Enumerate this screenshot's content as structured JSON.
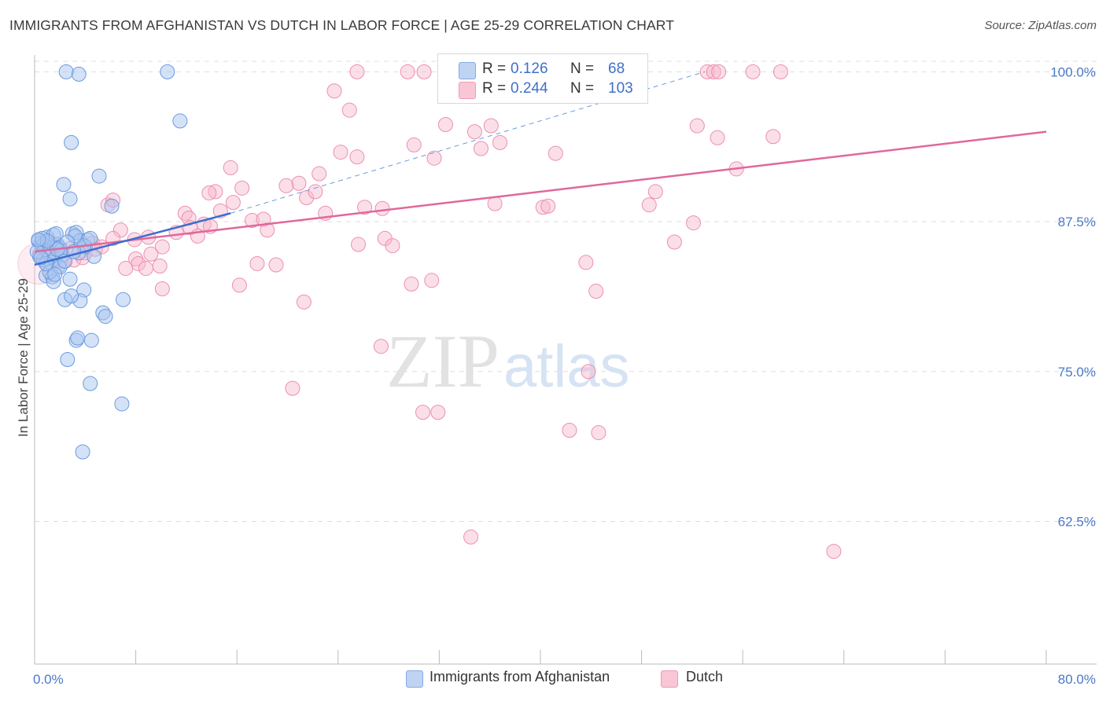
{
  "title": "IMMIGRANTS FROM AFGHANISTAN VS DUTCH IN LABOR FORCE | AGE 25-29 CORRELATION CHART",
  "source": "Source: ZipAtlas.com",
  "watermark": {
    "zip": "ZIP",
    "atlas": "atlas"
  },
  "legend": {
    "r_label": "R =",
    "n_label": "N =",
    "series": [
      {
        "name": "Immigrants from Afghanistan",
        "r": "0.126",
        "n": "68"
      },
      {
        "name": "Dutch",
        "r": "0.244",
        "n": "103"
      }
    ]
  },
  "colors": {
    "blue_fill": "#a9c6f0",
    "blue_stroke": "#6b9be0",
    "blue_line": "#3b6fcf",
    "pink_fill": "#f7b9cc",
    "pink_stroke": "#ec8fae",
    "pink_line": "#e0689a",
    "grid": "#dddddd",
    "tick_text": "#4a78c8"
  },
  "chart_data": {
    "type": "scatter",
    "title": "IMMIGRANTS FROM AFGHANISTAN VS DUTCH IN LABOR FORCE | AGE 25-29 CORRELATION CHART",
    "xlabel": "",
    "ylabel": "In Labor Force | Age 25-29",
    "xlim": [
      0,
      80
    ],
    "ylim": [
      50.6,
      101.4
    ],
    "x_tick_labels": [
      "0.0%",
      "80.0%"
    ],
    "y_ticks": [
      62.5,
      75.0,
      87.5,
      100.0
    ],
    "y_tick_labels": [
      "62.5%",
      "75.0%",
      "87.5%",
      "100.0%"
    ],
    "legend_position": "top-center",
    "series": [
      {
        "name": "Immigrants from Afghanistan",
        "r": 0.126,
        "n": 68,
        "trend": {
          "x0": 0.0,
          "y0": 83.9,
          "x1": 15.5,
          "y1": 88.2
        },
        "trend_dashed": {
          "x0": 15.5,
          "y0": 88.2,
          "x1": 53.0,
          "y1": 100.0
        },
        "points": [
          [
            2.5,
            100.0
          ],
          [
            3.5,
            99.8
          ],
          [
            10.5,
            100.0
          ],
          [
            11.5,
            95.9
          ],
          [
            2.9,
            94.1
          ],
          [
            5.1,
            91.3
          ],
          [
            2.3,
            90.6
          ],
          [
            2.8,
            89.4
          ],
          [
            6.1,
            88.8
          ],
          [
            0.3,
            85.9
          ],
          [
            0.5,
            85.7
          ],
          [
            0.6,
            85.5
          ],
          [
            0.8,
            85.2
          ],
          [
            1.0,
            86.2
          ],
          [
            1.2,
            85.8
          ],
          [
            1.5,
            86.4
          ],
          [
            1.8,
            85.6
          ],
          [
            2.0,
            85.3
          ],
          [
            0.4,
            84.6
          ],
          [
            0.7,
            84.3
          ],
          [
            1.1,
            84.9
          ],
          [
            1.3,
            84.1
          ],
          [
            1.6,
            84.4
          ],
          [
            1.9,
            83.8
          ],
          [
            2.2,
            84.7
          ],
          [
            3.0,
            86.5
          ],
          [
            3.3,
            86.6
          ],
          [
            3.6,
            85.9
          ],
          [
            4.2,
            86.0
          ],
          [
            4.0,
            85.4
          ],
          [
            4.7,
            84.6
          ],
          [
            0.9,
            83.0
          ],
          [
            1.4,
            82.9
          ],
          [
            1.5,
            82.5
          ],
          [
            2.8,
            82.7
          ],
          [
            3.9,
            81.8
          ],
          [
            2.4,
            81.0
          ],
          [
            3.6,
            80.9
          ],
          [
            2.9,
            81.3
          ],
          [
            5.4,
            79.9
          ],
          [
            5.6,
            79.6
          ],
          [
            3.3,
            77.6
          ],
          [
            4.5,
            77.6
          ],
          [
            3.4,
            77.8
          ],
          [
            2.6,
            76.0
          ],
          [
            4.4,
            74.0
          ],
          [
            7.0,
            81.0
          ],
          [
            6.9,
            72.3
          ],
          [
            3.8,
            68.3
          ],
          [
            0.2,
            85.0
          ],
          [
            0.6,
            86.1
          ],
          [
            1.7,
            86.5
          ],
          [
            2.1,
            85.1
          ],
          [
            3.2,
            86.3
          ],
          [
            3.5,
            84.9
          ],
          [
            2.6,
            85.8
          ],
          [
            1.2,
            83.3
          ],
          [
            0.9,
            84.0
          ],
          [
            2.0,
            83.7
          ],
          [
            3.9,
            85.5
          ],
          [
            1.8,
            85.2
          ],
          [
            1.0,
            85.9
          ],
          [
            0.5,
            84.5
          ],
          [
            2.4,
            84.2
          ],
          [
            3.1,
            85.0
          ],
          [
            4.4,
            86.1
          ],
          [
            1.6,
            83.1
          ],
          [
            0.3,
            86.0
          ]
        ]
      },
      {
        "name": "Dutch",
        "r": 0.244,
        "n": 103,
        "trend": {
          "x0": 0.0,
          "y0": 85.0,
          "x1": 80.0,
          "y1": 95.0
        },
        "points": [
          [
            25.5,
            100.0
          ],
          [
            29.5,
            100.0
          ],
          [
            30.8,
            100.0
          ],
          [
            36.9,
            100.0
          ],
          [
            53.2,
            100.0
          ],
          [
            53.7,
            100.0
          ],
          [
            54.1,
            100.0
          ],
          [
            56.8,
            100.0
          ],
          [
            59.0,
            100.0
          ],
          [
            23.7,
            98.4
          ],
          [
            24.9,
            96.8
          ],
          [
            32.5,
            95.6
          ],
          [
            36.1,
            95.5
          ],
          [
            34.8,
            95.0
          ],
          [
            52.4,
            95.5
          ],
          [
            54.0,
            94.5
          ],
          [
            58.4,
            94.6
          ],
          [
            30.0,
            93.9
          ],
          [
            35.3,
            93.6
          ],
          [
            36.8,
            94.1
          ],
          [
            41.2,
            93.2
          ],
          [
            24.2,
            93.3
          ],
          [
            25.5,
            92.9
          ],
          [
            31.6,
            92.8
          ],
          [
            15.5,
            92.0
          ],
          [
            22.5,
            91.5
          ],
          [
            20.9,
            90.7
          ],
          [
            19.9,
            90.5
          ],
          [
            16.4,
            90.3
          ],
          [
            14.3,
            90.0
          ],
          [
            15.7,
            89.1
          ],
          [
            21.5,
            89.5
          ],
          [
            22.2,
            90.0
          ],
          [
            13.8,
            89.9
          ],
          [
            49.1,
            90.0
          ],
          [
            55.5,
            91.9
          ],
          [
            26.1,
            88.7
          ],
          [
            27.5,
            88.6
          ],
          [
            36.4,
            89.0
          ],
          [
            40.2,
            88.7
          ],
          [
            40.6,
            88.8
          ],
          [
            48.6,
            88.9
          ],
          [
            23.0,
            88.2
          ],
          [
            11.9,
            88.2
          ],
          [
            12.2,
            87.8
          ],
          [
            13.4,
            87.3
          ],
          [
            12.3,
            87.0
          ],
          [
            13.9,
            87.1
          ],
          [
            17.2,
            87.6
          ],
          [
            18.1,
            87.7
          ],
          [
            18.4,
            86.8
          ],
          [
            6.8,
            86.8
          ],
          [
            5.8,
            88.9
          ],
          [
            6.2,
            89.3
          ],
          [
            52.1,
            87.4
          ],
          [
            12.9,
            86.3
          ],
          [
            27.7,
            86.1
          ],
          [
            6.2,
            86.1
          ],
          [
            4.6,
            85.7
          ],
          [
            5.3,
            85.4
          ],
          [
            7.9,
            86.0
          ],
          [
            10.1,
            85.4
          ],
          [
            25.6,
            85.6
          ],
          [
            28.3,
            85.5
          ],
          [
            43.6,
            84.1
          ],
          [
            50.6,
            85.8
          ],
          [
            8.0,
            84.4
          ],
          [
            8.2,
            84.0
          ],
          [
            9.2,
            84.8
          ],
          [
            9.9,
            83.8
          ],
          [
            8.8,
            83.6
          ],
          [
            4.0,
            84.9
          ],
          [
            3.1,
            84.3
          ],
          [
            2.3,
            84.2
          ],
          [
            3.8,
            84.5
          ],
          [
            17.6,
            84.0
          ],
          [
            19.1,
            83.9
          ],
          [
            7.2,
            83.6
          ],
          [
            16.2,
            82.2
          ],
          [
            10.1,
            81.9
          ],
          [
            29.8,
            82.3
          ],
          [
            31.4,
            82.6
          ],
          [
            44.4,
            81.7
          ],
          [
            21.3,
            80.8
          ],
          [
            27.4,
            77.1
          ],
          [
            43.8,
            75.0
          ],
          [
            20.4,
            73.6
          ],
          [
            30.7,
            71.6
          ],
          [
            31.9,
            71.6
          ],
          [
            42.3,
            70.1
          ],
          [
            44.6,
            69.9
          ],
          [
            34.5,
            61.2
          ],
          [
            63.2,
            60.0
          ],
          [
            1.0,
            83.9
          ],
          [
            1.6,
            84.6
          ],
          [
            2.9,
            85.3
          ],
          [
            0.6,
            85.5
          ],
          [
            1.3,
            85.0
          ],
          [
            4.8,
            85.2
          ],
          [
            11.2,
            86.6
          ],
          [
            14.7,
            88.4
          ],
          [
            9.0,
            86.2
          ],
          [
            0.4,
            84.8
          ]
        ]
      }
    ]
  }
}
